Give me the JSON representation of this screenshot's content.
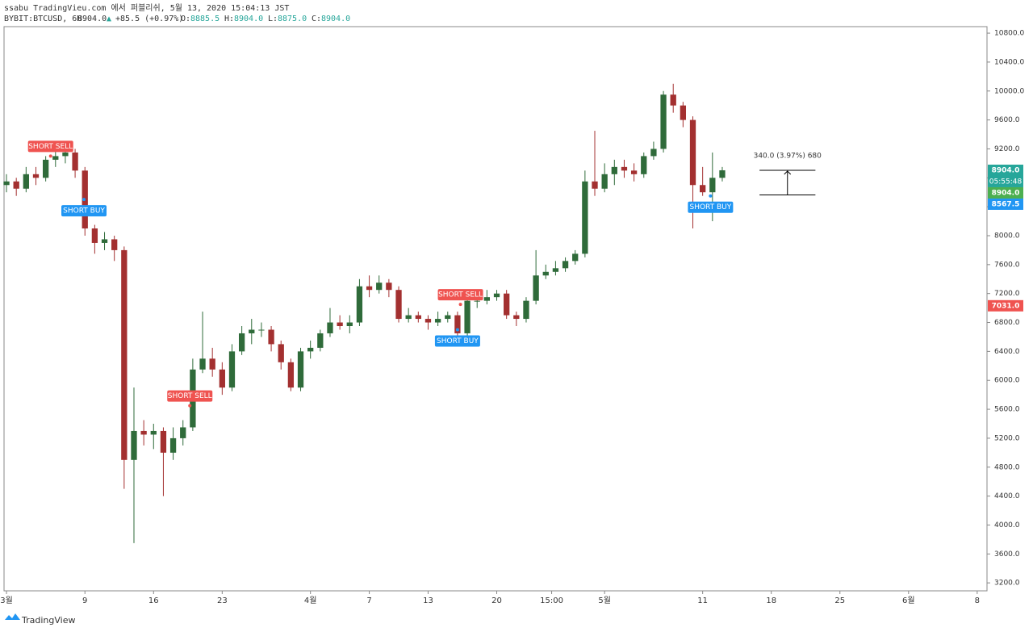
{
  "header": {
    "publisher": "ssabu TradingVieu.com 에서 퍼블리쉬, 5월 13, 2020 15:04:13 JST",
    "symbol": "BYBIT:BTCUSD, 6H",
    "last": "8904.0",
    "arrow": "▲",
    "change": "+85.5 (+0.97%)",
    "ohlc": [
      [
        "O:",
        "8885.5"
      ],
      [
        "H:",
        "8904.0"
      ],
      [
        "L:",
        "8875.0"
      ],
      [
        "C:",
        "8904.0"
      ]
    ]
  },
  "footer": {
    "brand": "TradingView"
  },
  "chart_data": {
    "type": "candlestick",
    "up_color": "#2f6b3a",
    "down_color": "#a33030",
    "xlim": [
      -0.25,
      100
    ],
    "ylim": [
      3090,
      10890
    ],
    "xticks": [
      {
        "value": 0,
        "label": "3월"
      },
      {
        "value": 8,
        "label": "9"
      },
      {
        "value": 15,
        "label": "16"
      },
      {
        "value": 22,
        "label": "23"
      },
      {
        "value": 31,
        "label": "4월"
      },
      {
        "value": 37,
        "label": "7"
      },
      {
        "value": 43,
        "label": "13"
      },
      {
        "value": 50,
        "label": "20"
      },
      {
        "value": 55.6,
        "label": "15:00"
      },
      {
        "value": 61,
        "label": "5월"
      },
      {
        "value": 71,
        "label": "11"
      },
      {
        "value": 78,
        "label": "18"
      },
      {
        "value": 85,
        "label": "25"
      },
      {
        "value": 92,
        "label": "6월"
      },
      {
        "value": 99,
        "label": "8"
      }
    ],
    "yticks": [
      {
        "value": 3200,
        "label": "3200.0"
      },
      {
        "value": 3600,
        "label": "3600.0"
      },
      {
        "value": 4000,
        "label": "4000.0"
      },
      {
        "value": 4400,
        "label": "4400.0"
      },
      {
        "value": 4800,
        "label": "4800.0"
      },
      {
        "value": 5200,
        "label": "5200.0"
      },
      {
        "value": 5600,
        "label": "5600.0"
      },
      {
        "value": 6000,
        "label": "6000.0"
      },
      {
        "value": 6400,
        "label": "6400.0"
      },
      {
        "value": 6800,
        "label": "6800.0"
      },
      {
        "value": 7200,
        "label": "7200.0"
      },
      {
        "value": 7600,
        "label": "7600.0"
      },
      {
        "value": 8000,
        "label": "8000.0"
      },
      {
        "value": 8400,
        "label": "8400.0"
      },
      {
        "value": 8800,
        "label": "8800.0"
      },
      {
        "value": 9200,
        "label": "9200.0"
      },
      {
        "value": 9600,
        "label": "9600.0"
      },
      {
        "value": 10000,
        "label": "10000.0"
      },
      {
        "value": 10400,
        "label": "10400.0"
      },
      {
        "value": 10800,
        "label": "10800.0"
      }
    ],
    "x": [
      0,
      1,
      2,
      3,
      4,
      5,
      6,
      7,
      8,
      9,
      10,
      11,
      12,
      13,
      14,
      15,
      16,
      17,
      18,
      19,
      20,
      21,
      22,
      23,
      24,
      25,
      26,
      27,
      28,
      29,
      30,
      31,
      32,
      33,
      34,
      35,
      36,
      37,
      38,
      39,
      40,
      41,
      42,
      43,
      44,
      45,
      46,
      47,
      48,
      49,
      50,
      51,
      52,
      53,
      54,
      55,
      56,
      57,
      58,
      59,
      60,
      61,
      62,
      63,
      64,
      65,
      66,
      67,
      68,
      69,
      70,
      71,
      72,
      73
    ],
    "ohlc": [
      [
        8700,
        8850,
        8600,
        8750
      ],
      [
        8750,
        8800,
        8550,
        8650
      ],
      [
        8650,
        8950,
        8600,
        8850
      ],
      [
        8850,
        8950,
        8700,
        8800
      ],
      [
        8800,
        9100,
        8750,
        9050
      ],
      [
        9050,
        9200,
        8950,
        9100
      ],
      [
        9100,
        9250,
        9000,
        9150
      ],
      [
        9150,
        9200,
        8800,
        8900
      ],
      [
        8900,
        8950,
        8000,
        8100
      ],
      [
        8100,
        8150,
        7750,
        7900
      ],
      [
        7900,
        8050,
        7800,
        7950
      ],
      [
        7950,
        8000,
        7650,
        7800
      ],
      [
        7800,
        7850,
        4500,
        4900
      ],
      [
        4900,
        5900,
        3750,
        5300
      ],
      [
        5300,
        5450,
        5100,
        5250
      ],
      [
        5250,
        5400,
        5050,
        5300
      ],
      [
        5300,
        5350,
        4400,
        5000
      ],
      [
        5000,
        5350,
        4900,
        5200
      ],
      [
        5200,
        5450,
        5100,
        5350
      ],
      [
        5350,
        6300,
        5300,
        6150
      ],
      [
        6150,
        6950,
        6100,
        6300
      ],
      [
        6300,
        6450,
        6050,
        6150
      ],
      [
        6150,
        6250,
        5800,
        5900
      ],
      [
        5900,
        6500,
        5850,
        6400
      ],
      [
        6400,
        6750,
        6350,
        6650
      ],
      [
        6650,
        6850,
        6500,
        6700
      ],
      [
        6700,
        6800,
        6600,
        6700
      ],
      [
        6700,
        6750,
        6400,
        6500
      ],
      [
        6500,
        6550,
        6150,
        6250
      ],
      [
        6250,
        6300,
        5850,
        5900
      ],
      [
        5900,
        6450,
        5850,
        6400
      ],
      [
        6400,
        6550,
        6300,
        6450
      ],
      [
        6450,
        6700,
        6400,
        6650
      ],
      [
        6650,
        7000,
        6600,
        6800
      ],
      [
        6800,
        6900,
        6700,
        6750
      ],
      [
        6750,
        6900,
        6650,
        6800
      ],
      [
        6800,
        7400,
        6750,
        7300
      ],
      [
        7300,
        7450,
        7150,
        7250
      ],
      [
        7250,
        7450,
        7200,
        7350
      ],
      [
        7350,
        7400,
        7150,
        7250
      ],
      [
        7250,
        7300,
        6800,
        6850
      ],
      [
        6850,
        7000,
        6800,
        6900
      ],
      [
        6900,
        6950,
        6800,
        6850
      ],
      [
        6850,
        6900,
        6700,
        6800
      ],
      [
        6800,
        6950,
        6750,
        6850
      ],
      [
        6850,
        6950,
        6800,
        6900
      ],
      [
        6900,
        6950,
        6500,
        6650
      ],
      [
        6650,
        7150,
        6600,
        7100
      ],
      [
        7100,
        7200,
        7000,
        7100
      ],
      [
        7100,
        7250,
        7050,
        7150
      ],
      [
        7150,
        7250,
        7100,
        7200
      ],
      [
        7200,
        7250,
        6850,
        6900
      ],
      [
        6900,
        6950,
        6750,
        6850
      ],
      [
        6850,
        7150,
        6800,
        7100
      ],
      [
        7100,
        7800,
        7050,
        7450
      ],
      [
        7450,
        7600,
        7400,
        7500
      ],
      [
        7500,
        7650,
        7450,
        7550
      ],
      [
        7550,
        7700,
        7500,
        7650
      ],
      [
        7650,
        7800,
        7600,
        7750
      ],
      [
        7750,
        8900,
        7700,
        8750
      ],
      [
        8750,
        9450,
        8550,
        8650
      ],
      [
        8650,
        9000,
        8600,
        8850
      ],
      [
        8850,
        9050,
        8700,
        8950
      ],
      [
        8950,
        9050,
        8800,
        8900
      ],
      [
        8900,
        9000,
        8750,
        8850
      ],
      [
        8850,
        9150,
        8800,
        9100
      ],
      [
        9100,
        9300,
        9050,
        9200
      ],
      [
        9200,
        10000,
        9150,
        9950
      ],
      [
        9950,
        10100,
        9700,
        9800
      ],
      [
        9800,
        9850,
        9500,
        9600
      ],
      [
        9600,
        9650,
        8100,
        8700
      ],
      [
        8700,
        8950,
        8550,
        8600
      ],
      [
        8600,
        9150,
        8200,
        8800
      ],
      [
        8800,
        8950,
        8750,
        8904
      ]
    ],
    "signals": [
      {
        "label": "SHORT SELL",
        "side": "sell",
        "x": 4.5,
        "price": 9100
      },
      {
        "label": "SHORT BUY",
        "side": "buy",
        "x": 7.9,
        "price": 8500
      },
      {
        "label": "SHORT SELL",
        "side": "sell",
        "x": 18.7,
        "price": 5650
      },
      {
        "label": "SHORT SELL",
        "side": "sell",
        "x": 46.3,
        "price": 7050
      },
      {
        "label": "SHORT BUY",
        "side": "buy",
        "x": 46,
        "price": 6700
      },
      {
        "label": "SHORT BUY",
        "side": "buy",
        "x": 71.8,
        "price": 8550
      }
    ],
    "sell_color": "#ef5350",
    "buy_color": "#2196f3",
    "price_labels": [
      {
        "value": 8904,
        "label": "8904.0",
        "sub": "05:55:48",
        "color": "#26a69a"
      },
      {
        "value": 8904,
        "label": "8904.0",
        "color": "#4caf50"
      },
      {
        "value": 8567.5,
        "label": "8567.5",
        "color": "#2196f3"
      },
      {
        "value": 7031,
        "label": "7031.0",
        "color": "#ef5350"
      }
    ],
    "measure": {
      "label": "340.0 (3.97%) 680",
      "from": 8564,
      "to": 8904,
      "x": [
        76.8,
        82.5
      ]
    }
  }
}
